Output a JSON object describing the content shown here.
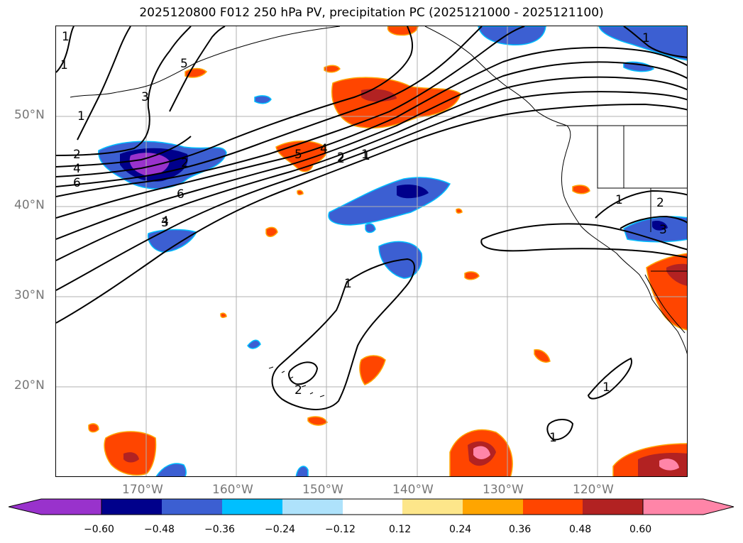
{
  "title": "2025120800 F012 250 hPa PV, precipitation PC (2025121000 - 2025121100)",
  "lat_labels": [
    "50°N",
    "40°N",
    "30°N",
    "20°N"
  ],
  "lon_labels": [
    "170°W",
    "160°W",
    "150°W",
    "140°W",
    "130°W",
    "120°W"
  ],
  "colorbar": {
    "tick_labels": [
      "−0.60",
      "−0.48",
      "−0.36",
      "−0.24",
      "−0.12",
      "0.12",
      "0.24",
      "0.36",
      "0.48",
      "0.60"
    ],
    "colors": [
      "#9932cc",
      "#00008b",
      "#3c5fd2",
      "#00bfff",
      "#aee2fb",
      "#ffffff",
      "#fde68a",
      "#ffa500",
      "#ff4500",
      "#b22222",
      "#ff85a8"
    ]
  },
  "contour_labels": [
    "1",
    "2",
    "3",
    "4",
    "5",
    "6",
    "1",
    "2",
    "1",
    "2",
    "1",
    "1",
    "1",
    "2",
    "1",
    "3",
    "2",
    "4",
    "6",
    "5",
    "4",
    "2",
    "1",
    "3",
    "1",
    "1"
  ],
  "colors": {
    "coast": "#000000",
    "grid": "#b0b0b0",
    "contour": "#000000"
  }
}
